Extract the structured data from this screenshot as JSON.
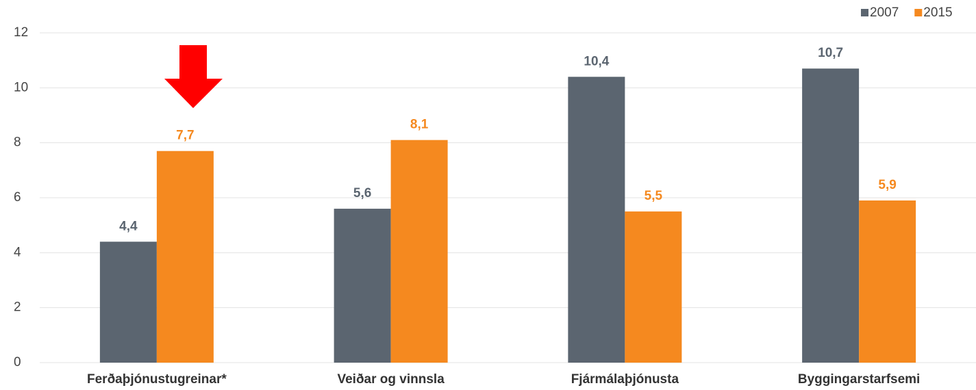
{
  "chart_data": {
    "type": "bar",
    "categories": [
      "Ferðaþjónustugreinar*",
      "Veiðar og vinnsla",
      "Fjármálaþjónusta",
      "Byggingarstarfsemi"
    ],
    "series": [
      {
        "name": "2007",
        "color": "#5b6570",
        "values": [
          4.4,
          5.6,
          10.4,
          10.7
        ],
        "value_labels": [
          "4,4",
          "5,6",
          "10,4",
          "10,7"
        ]
      },
      {
        "name": "2015",
        "color": "#f5891f",
        "values": [
          7.7,
          8.1,
          5.5,
          5.9
        ],
        "value_labels": [
          "7,7",
          "8,1",
          "5,5",
          "5,9"
        ]
      }
    ],
    "ylim": [
      0,
      12
    ],
    "yticks": [
      0,
      2,
      4,
      6,
      8,
      10,
      12
    ],
    "grid": true,
    "legend": "top-right"
  }
}
